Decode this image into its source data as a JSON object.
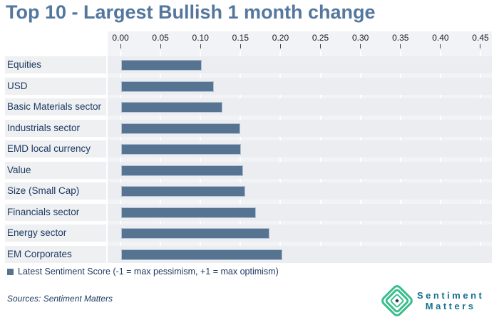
{
  "page": {
    "title": "Top 10 - Largest Bullish 1 month change"
  },
  "chart_data": {
    "type": "bar",
    "orientation": "horizontal",
    "title": "Top 10 - Largest Bullish 1 month change",
    "categories": [
      "Equities",
      "USD",
      "Basic Materials sector",
      "Industrials sector",
      "EMD local currency",
      "Value",
      "Size (Small Cap)",
      "Financials sector",
      "Energy sector",
      "EM Corporates"
    ],
    "values": [
      0.099,
      0.114,
      0.125,
      0.147,
      0.148,
      0.151,
      0.153,
      0.167,
      0.184,
      0.2
    ],
    "series_name": "Latest Sentiment Score",
    "xlim": [
      0,
      0.45
    ],
    "x_ticks": [
      0,
      0.05,
      0.1,
      0.15,
      0.2,
      0.25,
      0.3,
      0.35,
      0.4,
      0.45
    ],
    "x_tick_labels": [
      "0.00",
      "0.05",
      "0.10",
      "0.15",
      "0.20",
      "0.25",
      "0.30",
      "0.35",
      "0.40",
      "0.45"
    ],
    "grid": true,
    "legend_position": "bottom-left",
    "bar_color": "#567392"
  },
  "legend": {
    "label": "Latest Sentiment Score (-1 = max pessimism, +1 = max optimism)"
  },
  "footer": {
    "sources": "Sources: Sentiment Matters"
  },
  "logo": {
    "line1": "Sentiment",
    "line2": "Matters"
  },
  "colors": {
    "title": "#54779e",
    "bar": "#567392",
    "bar_border": "#b3c3d4",
    "label_text": "#1e3a63",
    "legend_text": "#1e3a63",
    "axis_text": "#1a1a1a",
    "plot_bg": "#f2f3f6",
    "row_band": "#ecedf1",
    "gridline": "#ffffff",
    "logo_green": "#3bbd8c",
    "logo_text": "#16708f",
    "logo_core": "#2e3263"
  }
}
